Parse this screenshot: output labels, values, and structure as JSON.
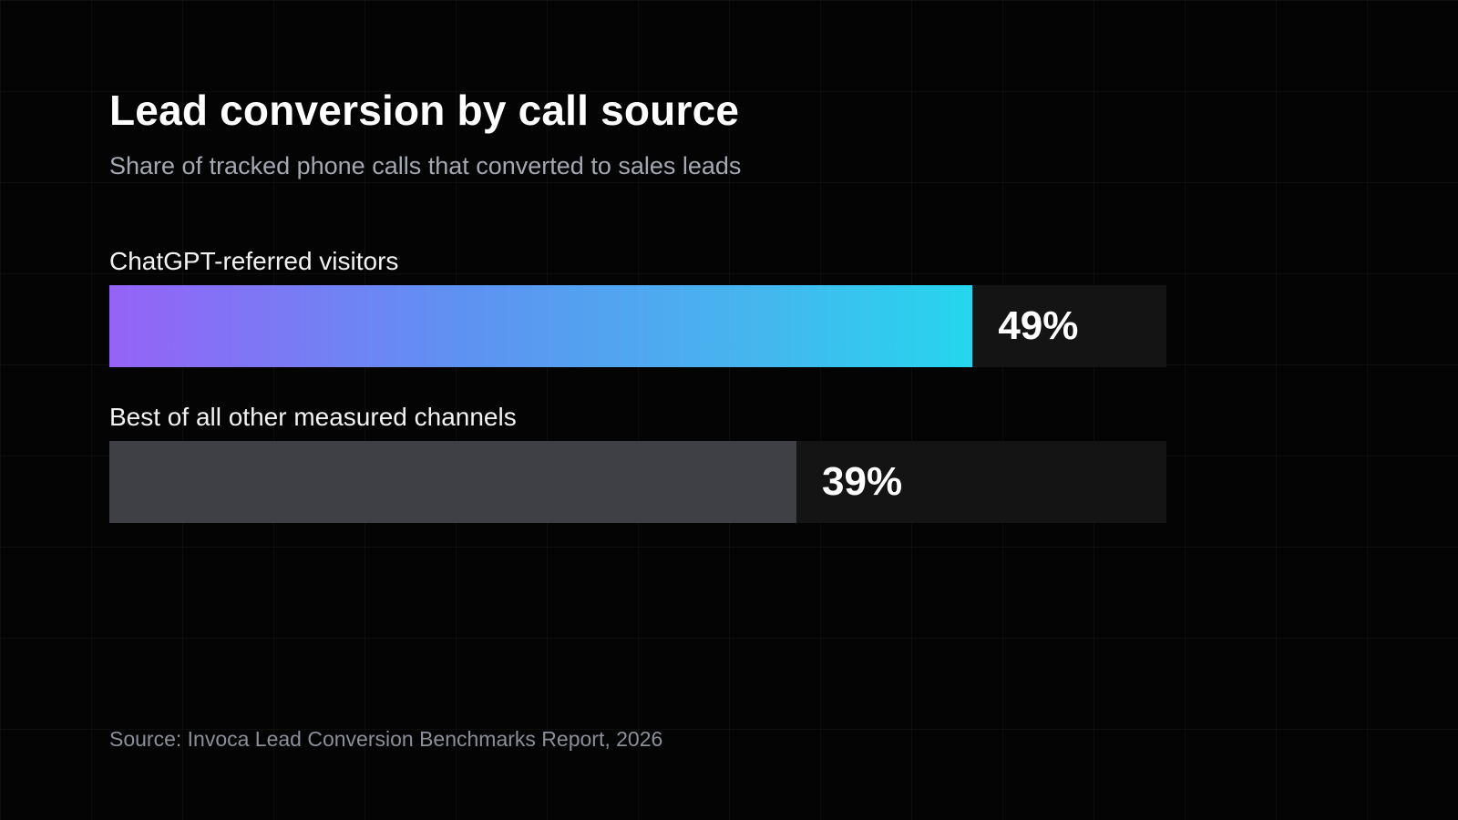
{
  "colors": {
    "background": "#040404",
    "accent_gradient_start": "#9563f7",
    "accent_gradient_end": "#25d6ee",
    "muted_bar": "#3f4045",
    "track": "#141415"
  },
  "chart_data": {
    "type": "bar",
    "orientation": "horizontal",
    "title": "Lead conversion by call source",
    "subtitle": "Share of tracked phone calls that converted to sales leads",
    "categories": [
      "ChatGPT-referred visitors",
      "Best of all other measured channels"
    ],
    "values": [
      49,
      39
    ],
    "value_labels": [
      "49%",
      "39%"
    ],
    "xlim": [
      0,
      60
    ],
    "grid": false,
    "legend": "none",
    "source": "Source: Invoca Lead Conversion Benchmarks Report, 2026"
  }
}
